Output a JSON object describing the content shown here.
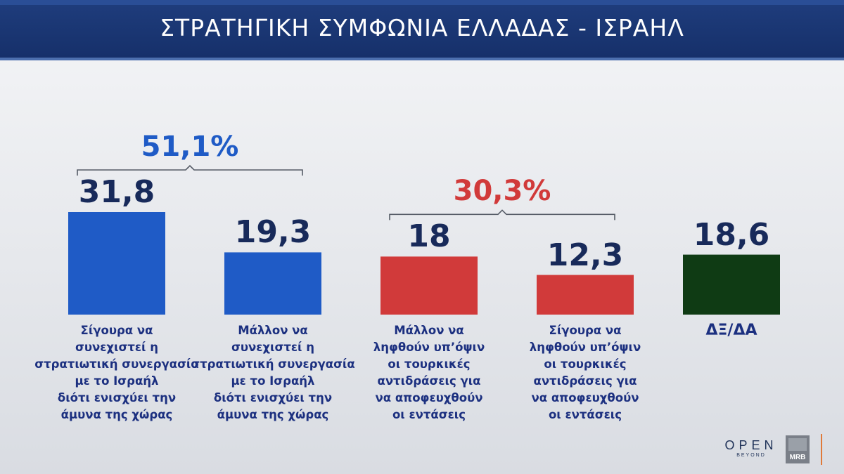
{
  "header": {
    "title": "ΣΤΡΑΤΗΓΙΚΗ ΣΥΜΦΩΝΙΑ ΕΛΛΑΔΑΣ - ΙΣΡΑΗΛ"
  },
  "colors": {
    "blue": "#1f5bc6",
    "red": "#d13a3a",
    "dark_green": "#0f3b14",
    "header_navy": "#16306a"
  },
  "chart_data": {
    "type": "bar",
    "categories": [
      "Σίγουρα να συνεχιστεί η στρατιωτική συνεργασία με το Ισραήλ διότι ενισχύει την άμυνα της χώρας",
      "Μάλλον να συνεχιστεί η στρατιωτική συνεργασία με το Ισραήλ διότι ενισχύει την άμυνα της χώρας",
      "Μάλλον να ληφθούν υπ’όψιν οι τουρκικές αντιδράσεις για να αποφευχθούν οι εντάσεις",
      "Σίγουρα να ληφθούν υπ’όψιν οι τουρκικές αντιδράσεις για να αποφευχθούν οι εντάσεις",
      "ΔΞ/ΔΑ"
    ],
    "values": [
      31.8,
      19.3,
      18,
      12.3,
      18.6
    ],
    "value_labels": [
      "31,8",
      "19,3",
      "18",
      "12,3",
      "18,6"
    ],
    "label_lines": [
      [
        "Σίγουρα να",
        "συνεχιστεί η",
        "στρατιωτική συνεργασία",
        "με το Ισραήλ",
        "διότι ενισχύει την",
        "άμυνα της χώρας"
      ],
      [
        "Μάλλον να",
        "συνεχιστεί η",
        "στρατιωτική συνεργασία",
        "με το Ισραήλ",
        "διότι ενισχύει την",
        "άμυνα της χώρας"
      ],
      [
        "Μάλλον να",
        "ληφθούν υπ’όψιν",
        "οι τουρκικές",
        "αντιδράσεις για",
        "να αποφευχθούν",
        "οι εντάσεις"
      ],
      [
        "Σίγουρα να",
        "ληφθούν υπ’όψιν",
        "οι τουρκικές",
        "αντιδράσεις για",
        "να αποφευχθούν",
        "οι εντάσεις"
      ],
      [
        "ΔΞ/ΔΑ"
      ]
    ],
    "bar_colors": [
      "#1f5bc6",
      "#1f5bc6",
      "#d13a3a",
      "#d13a3a",
      "#0f3b14"
    ],
    "groups": [
      {
        "label": "51,1%",
        "value": 51.1,
        "members": [
          0,
          1
        ],
        "color": "#1f5bc6"
      },
      {
        "label": "30,3%",
        "value": 30.3,
        "members": [
          2,
          3
        ],
        "color": "#d13a3a"
      }
    ],
    "ylim": [
      0,
      31.8
    ],
    "grid": false,
    "legend": "none"
  },
  "logos": {
    "open": "OPEN",
    "beyond": "BEYOND",
    "mrb": "MRB"
  }
}
